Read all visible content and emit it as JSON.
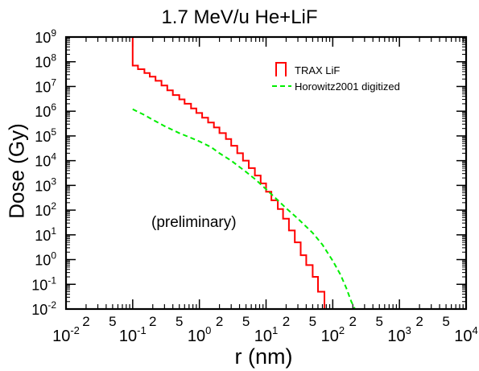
{
  "chart_data": {
    "type": "line",
    "title": "1.7  MeV/u  He+LiF",
    "xlabel": "r  (nm)",
    "ylabel": "Dose  (Gy)",
    "annotation": "(preliminary)",
    "xscale": "log",
    "yscale": "log",
    "xlim": [
      0.01,
      10000
    ],
    "ylim": [
      0.01,
      1000000000
    ],
    "x_major_ticks": [
      0.01,
      0.1,
      1,
      10,
      100,
      1000,
      10000
    ],
    "y_major_ticks": [
      0.01,
      0.1,
      1,
      10,
      100,
      1000,
      10000,
      100000,
      1000000,
      10000000,
      100000000,
      1000000000
    ],
    "x_minor_labels": [
      "2",
      "5"
    ],
    "legend_position": "top-right",
    "series": [
      {
        "name": "TRAX LiF",
        "color": "#ff0000",
        "style": "step",
        "x": [
          0.01,
          0.1,
          0.1,
          0.12,
          0.15,
          0.18,
          0.22,
          0.27,
          0.33,
          0.4,
          0.5,
          0.6,
          0.75,
          0.9,
          1.1,
          1.35,
          1.65,
          2.0,
          2.5,
          3.0,
          3.7,
          4.5,
          5.5,
          6.8,
          8.3,
          10,
          12,
          15,
          18,
          22,
          27,
          33,
          40,
          50,
          60,
          75,
          90,
          110,
          135,
          165,
          10000
        ],
        "y": [
          1000000000,
          1000000000,
          70000000,
          50000000,
          35000000,
          25000000,
          17000000,
          11000000,
          7000000,
          4500000,
          3000000,
          2000000,
          1300000,
          850000,
          550000,
          350000,
          220000,
          130000,
          75000,
          40000,
          20000,
          10000,
          5000,
          2500,
          1200,
          550,
          250,
          110,
          45,
          15,
          5,
          1.5,
          0.6,
          0.2,
          0.05,
          0.01,
          0.01,
          0.01,
          0.01,
          0.01,
          0.01
        ]
      },
      {
        "name": "Horowitz2001 digitized",
        "color": "#00ee00",
        "style": "dashed",
        "x": [
          0.1,
          0.15,
          0.2,
          0.3,
          0.5,
          0.7,
          1.0,
          1.5,
          2.0,
          3.0,
          5.0,
          7.0,
          10,
          15,
          20,
          30,
          50,
          70,
          100,
          130,
          160,
          190,
          215
        ],
        "y": [
          1200000,
          700000,
          450000,
          250000,
          130000,
          90000,
          60000,
          35000,
          20000,
          10000,
          3500,
          1700,
          700,
          250,
          120,
          45,
          12,
          4,
          0.9,
          0.25,
          0.07,
          0.02,
          0.01
        ]
      }
    ]
  }
}
